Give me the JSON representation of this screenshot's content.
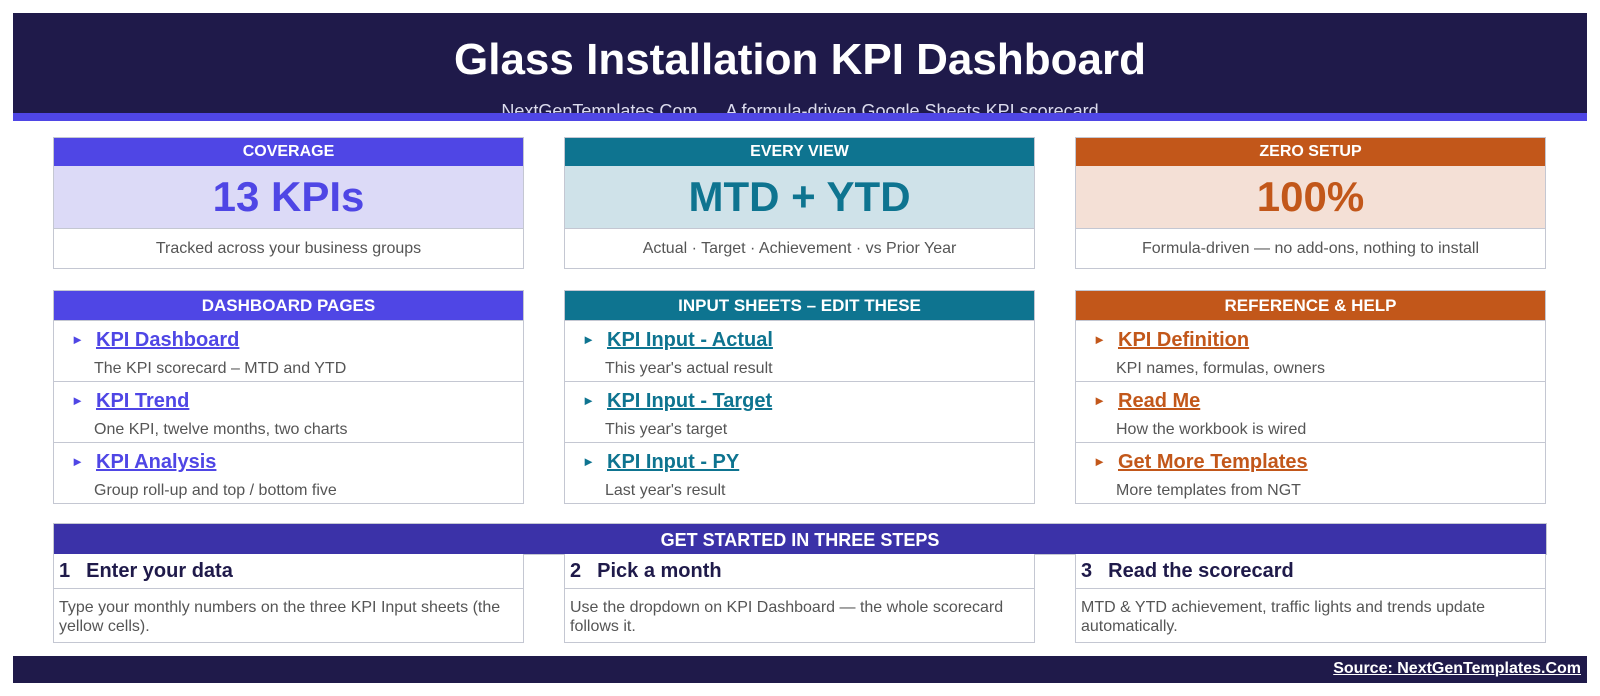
{
  "header": {
    "title": "Glass Installation KPI Dashboard",
    "site": "NextGenTemplates.Com",
    "tagline": "A formula-driven Google Sheets KPI scorecard"
  },
  "colors": {
    "navy": "#1f1a4a",
    "indigo": "#4f46e5",
    "teal": "#0e7490",
    "orange": "#c2571a",
    "steps_bar": "#3b32a8"
  },
  "kpis": [
    {
      "label": "COVERAGE",
      "value": "13 KPIs",
      "note": "Tracked across your business groups"
    },
    {
      "label": "EVERY VIEW",
      "value": "MTD + YTD",
      "note": "Actual · Target · Achievement · vs Prior Year"
    },
    {
      "label": "ZERO SETUP",
      "value": "100%",
      "note": "Formula-driven — no add-ons, nothing to install"
    }
  ],
  "nav": [
    {
      "heading": "DASHBOARD PAGES",
      "items": [
        {
          "arrow": "►",
          "label": "KPI Dashboard",
          "desc": "The KPI scorecard – MTD and YTD"
        },
        {
          "arrow": "►",
          "label": "KPI Trend",
          "desc": "One KPI, twelve months, two charts"
        },
        {
          "arrow": "►",
          "label": "KPI Analysis",
          "desc": "Group roll-up and top / bottom five"
        }
      ]
    },
    {
      "heading": "INPUT SHEETS – EDIT THESE",
      "items": [
        {
          "arrow": "►",
          "label": "KPI Input - Actual",
          "desc": "This year's actual result"
        },
        {
          "arrow": "►",
          "label": "KPI Input - Target",
          "desc": "This year's target"
        },
        {
          "arrow": "►",
          "label": "KPI Input - PY",
          "desc": "Last year's result"
        }
      ]
    },
    {
      "heading": "REFERENCE & HELP",
      "items": [
        {
          "arrow": "►",
          "label": "KPI Definition",
          "desc": "KPI names, formulas, owners"
        },
        {
          "arrow": "►",
          "label": "Read Me",
          "desc": "How the workbook is wired"
        },
        {
          "arrow": "►",
          "label": "Get More Templates",
          "desc": "More templates from NGT"
        }
      ]
    }
  ],
  "steps": {
    "heading": "GET STARTED IN THREE STEPS",
    "items": [
      {
        "num": "1",
        "title": "Enter your data",
        "desc": "Type your monthly numbers on the three KPI Input sheets (the yellow cells)."
      },
      {
        "num": "2",
        "title": "Pick a month",
        "desc": "Use the dropdown on KPI Dashboard — the whole scorecard follows it."
      },
      {
        "num": "3",
        "title": "Read the scorecard",
        "desc": "MTD & YTD achievement, traffic lights and trends update automatically."
      }
    ]
  },
  "footer": {
    "source": "Source: NextGenTemplates.Com"
  }
}
